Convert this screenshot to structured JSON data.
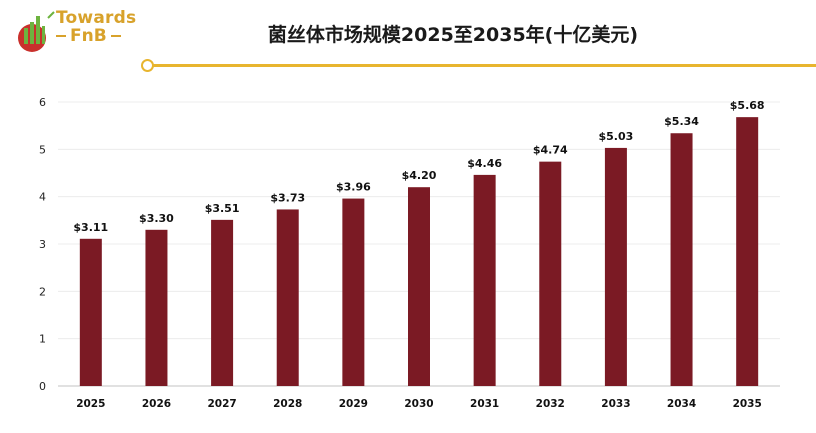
{
  "header": {
    "logo_line1": "Towards",
    "logo_line2": "FnB",
    "title": "菌丝体市场规模2025至2035年(十亿美元)"
  },
  "colors": {
    "bar": "#7b1a24",
    "accent": "#e8b52e",
    "brand": "#d8a22b"
  },
  "chart_data": {
    "type": "bar",
    "categories": [
      "2025",
      "2026",
      "2027",
      "2028",
      "2029",
      "2030",
      "2031",
      "2032",
      "2033",
      "2034",
      "2035"
    ],
    "values": [
      3.11,
      3.3,
      3.51,
      3.73,
      3.96,
      4.2,
      4.46,
      4.74,
      5.03,
      5.34,
      5.68
    ],
    "data_labels": [
      "$3.11",
      "$3.30",
      "$3.51",
      "$3.73",
      "$3.96",
      "$4.20",
      "$4.46",
      "$4.74",
      "$5.03",
      "$5.34",
      "$5.68"
    ],
    "title": "菌丝体市场规模2025至2035年(十亿美元)",
    "xlabel": "",
    "ylabel": "",
    "ylim": [
      0,
      6
    ],
    "yticks": [
      "0",
      "1",
      "2",
      "3",
      "4",
      "5",
      "6"
    ],
    "grid": true,
    "legend": "none"
  }
}
